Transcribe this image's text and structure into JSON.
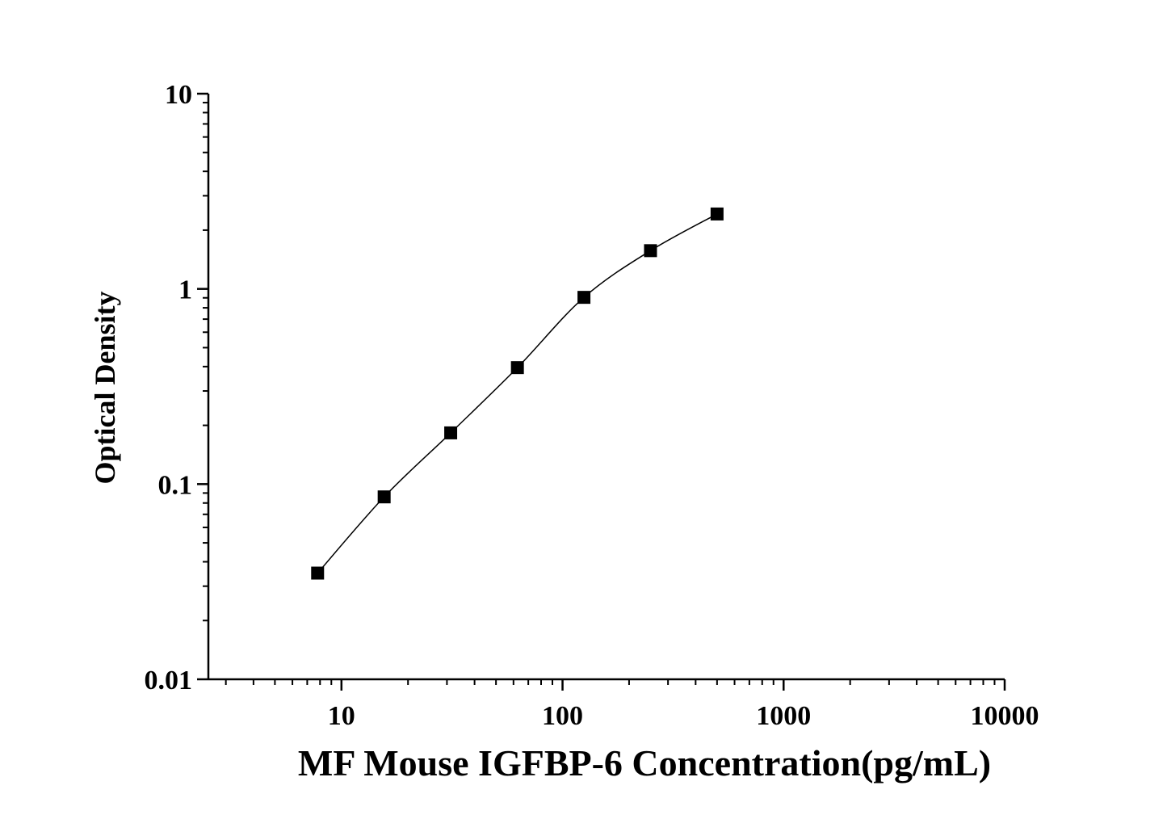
{
  "chart_data": {
    "type": "scatter",
    "xlabel": "MF Mouse IGFBP-6 Concentration(pg/mL)",
    "ylabel": "Optical Density",
    "x_scale": "log",
    "y_scale": "log",
    "xlim": [
      2.5,
      10000
    ],
    "ylim": [
      0.01,
      10
    ],
    "x_ticks": [
      10,
      100,
      1000,
      10000
    ],
    "x_tick_labels": [
      "10",
      "100",
      "1000",
      "10000"
    ],
    "y_ticks": [
      0.01,
      0.1,
      1,
      10
    ],
    "y_tick_labels": [
      "0.01",
      "0.1",
      "1",
      "10"
    ],
    "grid": false,
    "marker": "square",
    "line": "smooth curve through points",
    "colors": {
      "marker": "#000000",
      "line": "#000000",
      "axis": "#000000"
    },
    "series": [
      {
        "x": [
          7.8,
          15.6,
          31.2,
          62.5,
          125,
          250,
          500
        ],
        "y": [
          0.035,
          0.086,
          0.183,
          0.395,
          0.905,
          1.57,
          2.42
        ]
      }
    ]
  }
}
